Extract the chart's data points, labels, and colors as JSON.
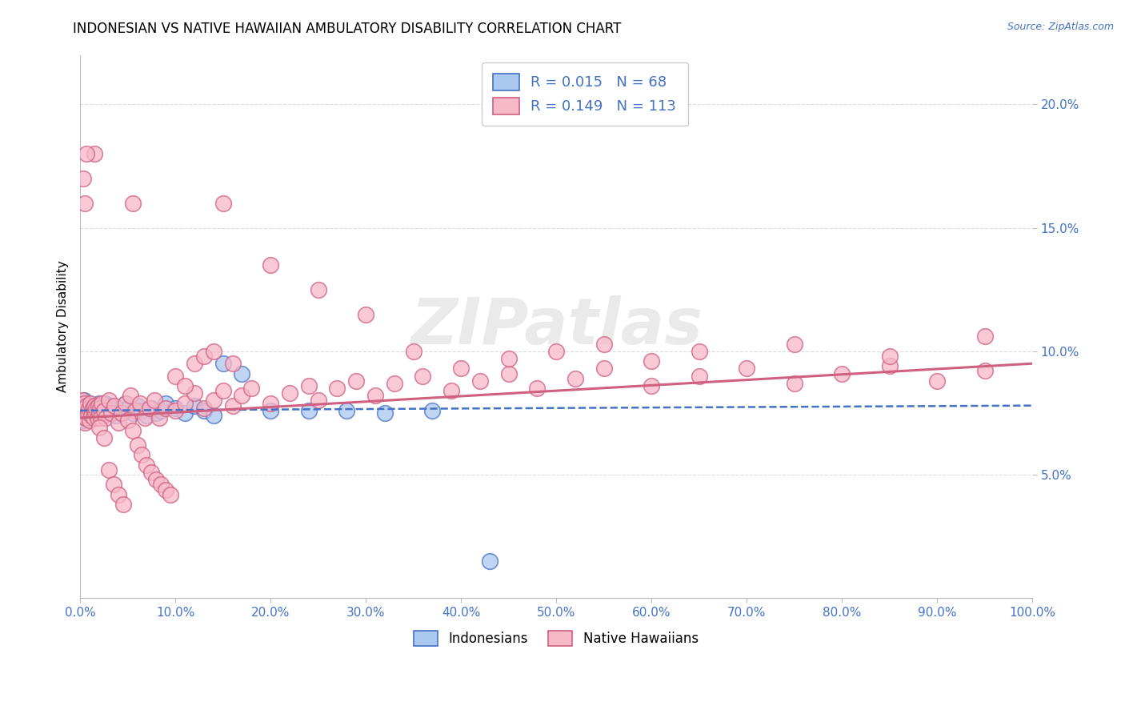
{
  "title": "INDONESIAN VS NATIVE HAWAIIAN AMBULATORY DISABILITY CORRELATION CHART",
  "source_text": "Source: ZipAtlas.com",
  "ylabel": "Ambulatory Disability",
  "xlim": [
    0.0,
    1.0
  ],
  "ylim": [
    0.0,
    0.22
  ],
  "xtick_vals": [
    0.0,
    0.1,
    0.2,
    0.3,
    0.4,
    0.5,
    0.6,
    0.7,
    0.8,
    0.9,
    1.0
  ],
  "xticklabels": [
    "0.0%",
    "10.0%",
    "20.0%",
    "30.0%",
    "40.0%",
    "50.0%",
    "60.0%",
    "70.0%",
    "80.0%",
    "90.0%",
    "100.0%"
  ],
  "ytick_vals": [
    0.05,
    0.1,
    0.15,
    0.2
  ],
  "yticklabels": [
    "5.0%",
    "10.0%",
    "15.0%",
    "20.0%"
  ],
  "legend_r1": "R = 0.015",
  "legend_n1": "N = 68",
  "legend_r2": "R = 0.149",
  "legend_n2": "N = 113",
  "legend_label1": "Indonesians",
  "legend_label2": "Native Hawaiians",
  "watermark": "ZIPatlas",
  "color_blue_fill": "#aac8f0",
  "color_blue_edge": "#4472c4",
  "color_pink_fill": "#f7b8c8",
  "color_pink_edge": "#d06080",
  "color_blue_text": "#4472c4",
  "color_pink_text": "#d06080",
  "color_axis_label": "#4472c4",
  "grid_color": "#cccccc",
  "trend_blue_intercept": 0.076,
  "trend_blue_slope": 0.002,
  "trend_pink_intercept": 0.073,
  "trend_pink_slope": 0.022,
  "indonesian_x": [
    0.001,
    0.002,
    0.003,
    0.003,
    0.004,
    0.004,
    0.005,
    0.005,
    0.006,
    0.006,
    0.007,
    0.007,
    0.008,
    0.008,
    0.009,
    0.009,
    0.01,
    0.01,
    0.011,
    0.011,
    0.012,
    0.012,
    0.013,
    0.014,
    0.015,
    0.015,
    0.016,
    0.017,
    0.018,
    0.019,
    0.02,
    0.021,
    0.022,
    0.023,
    0.024,
    0.025,
    0.026,
    0.028,
    0.03,
    0.032,
    0.035,
    0.038,
    0.04,
    0.042,
    0.045,
    0.048,
    0.05,
    0.055,
    0.06,
    0.065,
    0.07,
    0.075,
    0.08,
    0.085,
    0.09,
    0.1,
    0.11,
    0.12,
    0.13,
    0.14,
    0.15,
    0.17,
    0.2,
    0.24,
    0.28,
    0.32,
    0.37,
    0.43
  ],
  "indonesian_y": [
    0.076,
    0.078,
    0.079,
    0.072,
    0.08,
    0.075,
    0.073,
    0.077,
    0.076,
    0.079,
    0.074,
    0.078,
    0.077,
    0.073,
    0.076,
    0.079,
    0.075,
    0.078,
    0.074,
    0.077,
    0.076,
    0.073,
    0.077,
    0.075,
    0.078,
    0.076,
    0.074,
    0.077,
    0.075,
    0.076,
    0.079,
    0.077,
    0.075,
    0.078,
    0.074,
    0.076,
    0.079,
    0.077,
    0.075,
    0.078,
    0.076,
    0.074,
    0.077,
    0.075,
    0.076,
    0.079,
    0.077,
    0.075,
    0.078,
    0.076,
    0.074,
    0.077,
    0.075,
    0.076,
    0.079,
    0.077,
    0.075,
    0.078,
    0.076,
    0.074,
    0.095,
    0.091,
    0.076,
    0.076,
    0.076,
    0.075,
    0.076,
    0.015
  ],
  "native_hawaiian_x": [
    0.001,
    0.002,
    0.003,
    0.004,
    0.005,
    0.005,
    0.006,
    0.007,
    0.008,
    0.009,
    0.01,
    0.011,
    0.012,
    0.013,
    0.014,
    0.015,
    0.016,
    0.017,
    0.018,
    0.019,
    0.02,
    0.021,
    0.022,
    0.023,
    0.025,
    0.027,
    0.03,
    0.033,
    0.036,
    0.04,
    0.044,
    0.048,
    0.053,
    0.058,
    0.063,
    0.068,
    0.073,
    0.078,
    0.083,
    0.09,
    0.1,
    0.11,
    0.12,
    0.13,
    0.14,
    0.15,
    0.16,
    0.17,
    0.18,
    0.2,
    0.22,
    0.24,
    0.25,
    0.27,
    0.29,
    0.31,
    0.33,
    0.36,
    0.39,
    0.42,
    0.45,
    0.48,
    0.52,
    0.55,
    0.6,
    0.65,
    0.7,
    0.75,
    0.8,
    0.85,
    0.9,
    0.95,
    0.02,
    0.025,
    0.03,
    0.035,
    0.04,
    0.045,
    0.05,
    0.055,
    0.06,
    0.065,
    0.07,
    0.075,
    0.08,
    0.085,
    0.09,
    0.095,
    0.1,
    0.11,
    0.12,
    0.13,
    0.14,
    0.15,
    0.2,
    0.25,
    0.3,
    0.35,
    0.015,
    0.007,
    0.005,
    0.003,
    0.055,
    0.16,
    0.4,
    0.45,
    0.5,
    0.55,
    0.6,
    0.65,
    0.75,
    0.85,
    0.95
  ],
  "native_hawaiian_y": [
    0.076,
    0.08,
    0.074,
    0.079,
    0.071,
    0.077,
    0.073,
    0.078,
    0.075,
    0.077,
    0.072,
    0.079,
    0.074,
    0.077,
    0.073,
    0.078,
    0.075,
    0.077,
    0.073,
    0.078,
    0.075,
    0.077,
    0.073,
    0.079,
    0.076,
    0.073,
    0.08,
    0.075,
    0.078,
    0.071,
    0.075,
    0.079,
    0.082,
    0.076,
    0.079,
    0.073,
    0.077,
    0.08,
    0.073,
    0.077,
    0.076,
    0.079,
    0.083,
    0.077,
    0.08,
    0.084,
    0.078,
    0.082,
    0.085,
    0.079,
    0.083,
    0.086,
    0.08,
    0.085,
    0.088,
    0.082,
    0.087,
    0.09,
    0.084,
    0.088,
    0.091,
    0.085,
    0.089,
    0.093,
    0.086,
    0.09,
    0.093,
    0.087,
    0.091,
    0.094,
    0.088,
    0.092,
    0.069,
    0.065,
    0.052,
    0.046,
    0.042,
    0.038,
    0.072,
    0.068,
    0.062,
    0.058,
    0.054,
    0.051,
    0.048,
    0.046,
    0.044,
    0.042,
    0.09,
    0.086,
    0.095,
    0.098,
    0.1,
    0.16,
    0.135,
    0.125,
    0.115,
    0.1,
    0.18,
    0.18,
    0.16,
    0.17,
    0.16,
    0.095,
    0.093,
    0.097,
    0.1,
    0.103,
    0.096,
    0.1,
    0.103,
    0.098,
    0.106
  ]
}
